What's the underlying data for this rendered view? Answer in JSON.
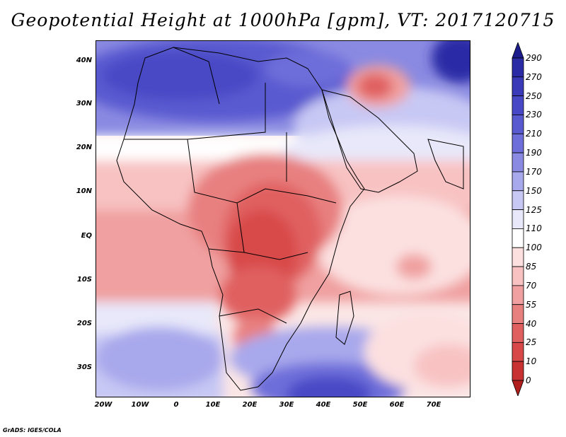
{
  "title": "Geopotential Height at 1000hPa [gpm], VT: 2017120715",
  "footer": "GrADS: IGES/COLA",
  "map": {
    "variable": "Geopotential Height",
    "level": "1000hPa",
    "units": "gpm",
    "valid_time": "2017120715",
    "lat_labels": [
      "40N",
      "30N",
      "20N",
      "10N",
      "EQ",
      "10S",
      "20S",
      "30S"
    ],
    "lon_labels": [
      "20W",
      "10W",
      "0",
      "10E",
      "20E",
      "30E",
      "40E",
      "50E",
      "60E",
      "70E"
    ]
  },
  "colorbar": {
    "levels": [
      "290",
      "270",
      "250",
      "230",
      "210",
      "190",
      "170",
      "150",
      "125",
      "110",
      "100",
      "85",
      "70",
      "55",
      "40",
      "25",
      "10",
      "0"
    ],
    "colors": [
      "#1c1c8c",
      "#2b2ba6",
      "#3a3ab8",
      "#4848c6",
      "#5a5ad0",
      "#6e6eda",
      "#8a8ae2",
      "#a8a8ec",
      "#c8c8f4",
      "#e8e8fa",
      "#ffffff",
      "#fce0e0",
      "#f8c2c2",
      "#f0a0a0",
      "#e88080",
      "#e06060",
      "#d84848",
      "#c83232",
      "#b01e1e"
    ]
  }
}
